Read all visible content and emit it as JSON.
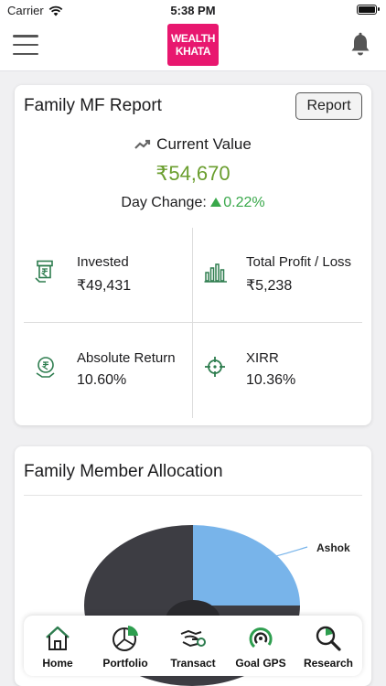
{
  "status_bar": {
    "carrier": "Carrier",
    "time": "5:38 PM"
  },
  "header": {
    "logo_line1": "WEALTH",
    "logo_line2": "KHATA"
  },
  "report_card": {
    "title": "Family MF Report",
    "report_button": "Report",
    "current_value_label": "Current Value",
    "current_value": "₹54,670",
    "day_change_label": "Day Change:",
    "day_change_value": "0.22%",
    "stats": {
      "invested": {
        "label": "Invested",
        "value": "₹49,431"
      },
      "profit_loss": {
        "label": "Total Profit / Loss",
        "value": "₹5,238"
      },
      "absolute_return": {
        "label": "Absolute Return",
        "value": "10.60%"
      },
      "xirr": {
        "label": "XIRR",
        "value": "10.36%"
      }
    }
  },
  "allocation_card": {
    "title": "Family Member Allocation",
    "slice_label": "Ashok"
  },
  "tab_bar": {
    "items": [
      {
        "label": "Home",
        "icon": "home-icon"
      },
      {
        "label": "Portfolio",
        "icon": "portfolio-icon"
      },
      {
        "label": "Transact",
        "icon": "transact-icon"
      },
      {
        "label": "Goal GPS",
        "icon": "goal-gps-icon"
      },
      {
        "label": "Research",
        "icon": "research-icon"
      }
    ]
  },
  "colors": {
    "brand": "#e8176f",
    "value_green": "#6a9e2e",
    "up_green": "#39a84a",
    "icon_green": "#2e7d4f",
    "pie_blue": "#78b4ea",
    "pie_dark": "#3d3d43"
  }
}
